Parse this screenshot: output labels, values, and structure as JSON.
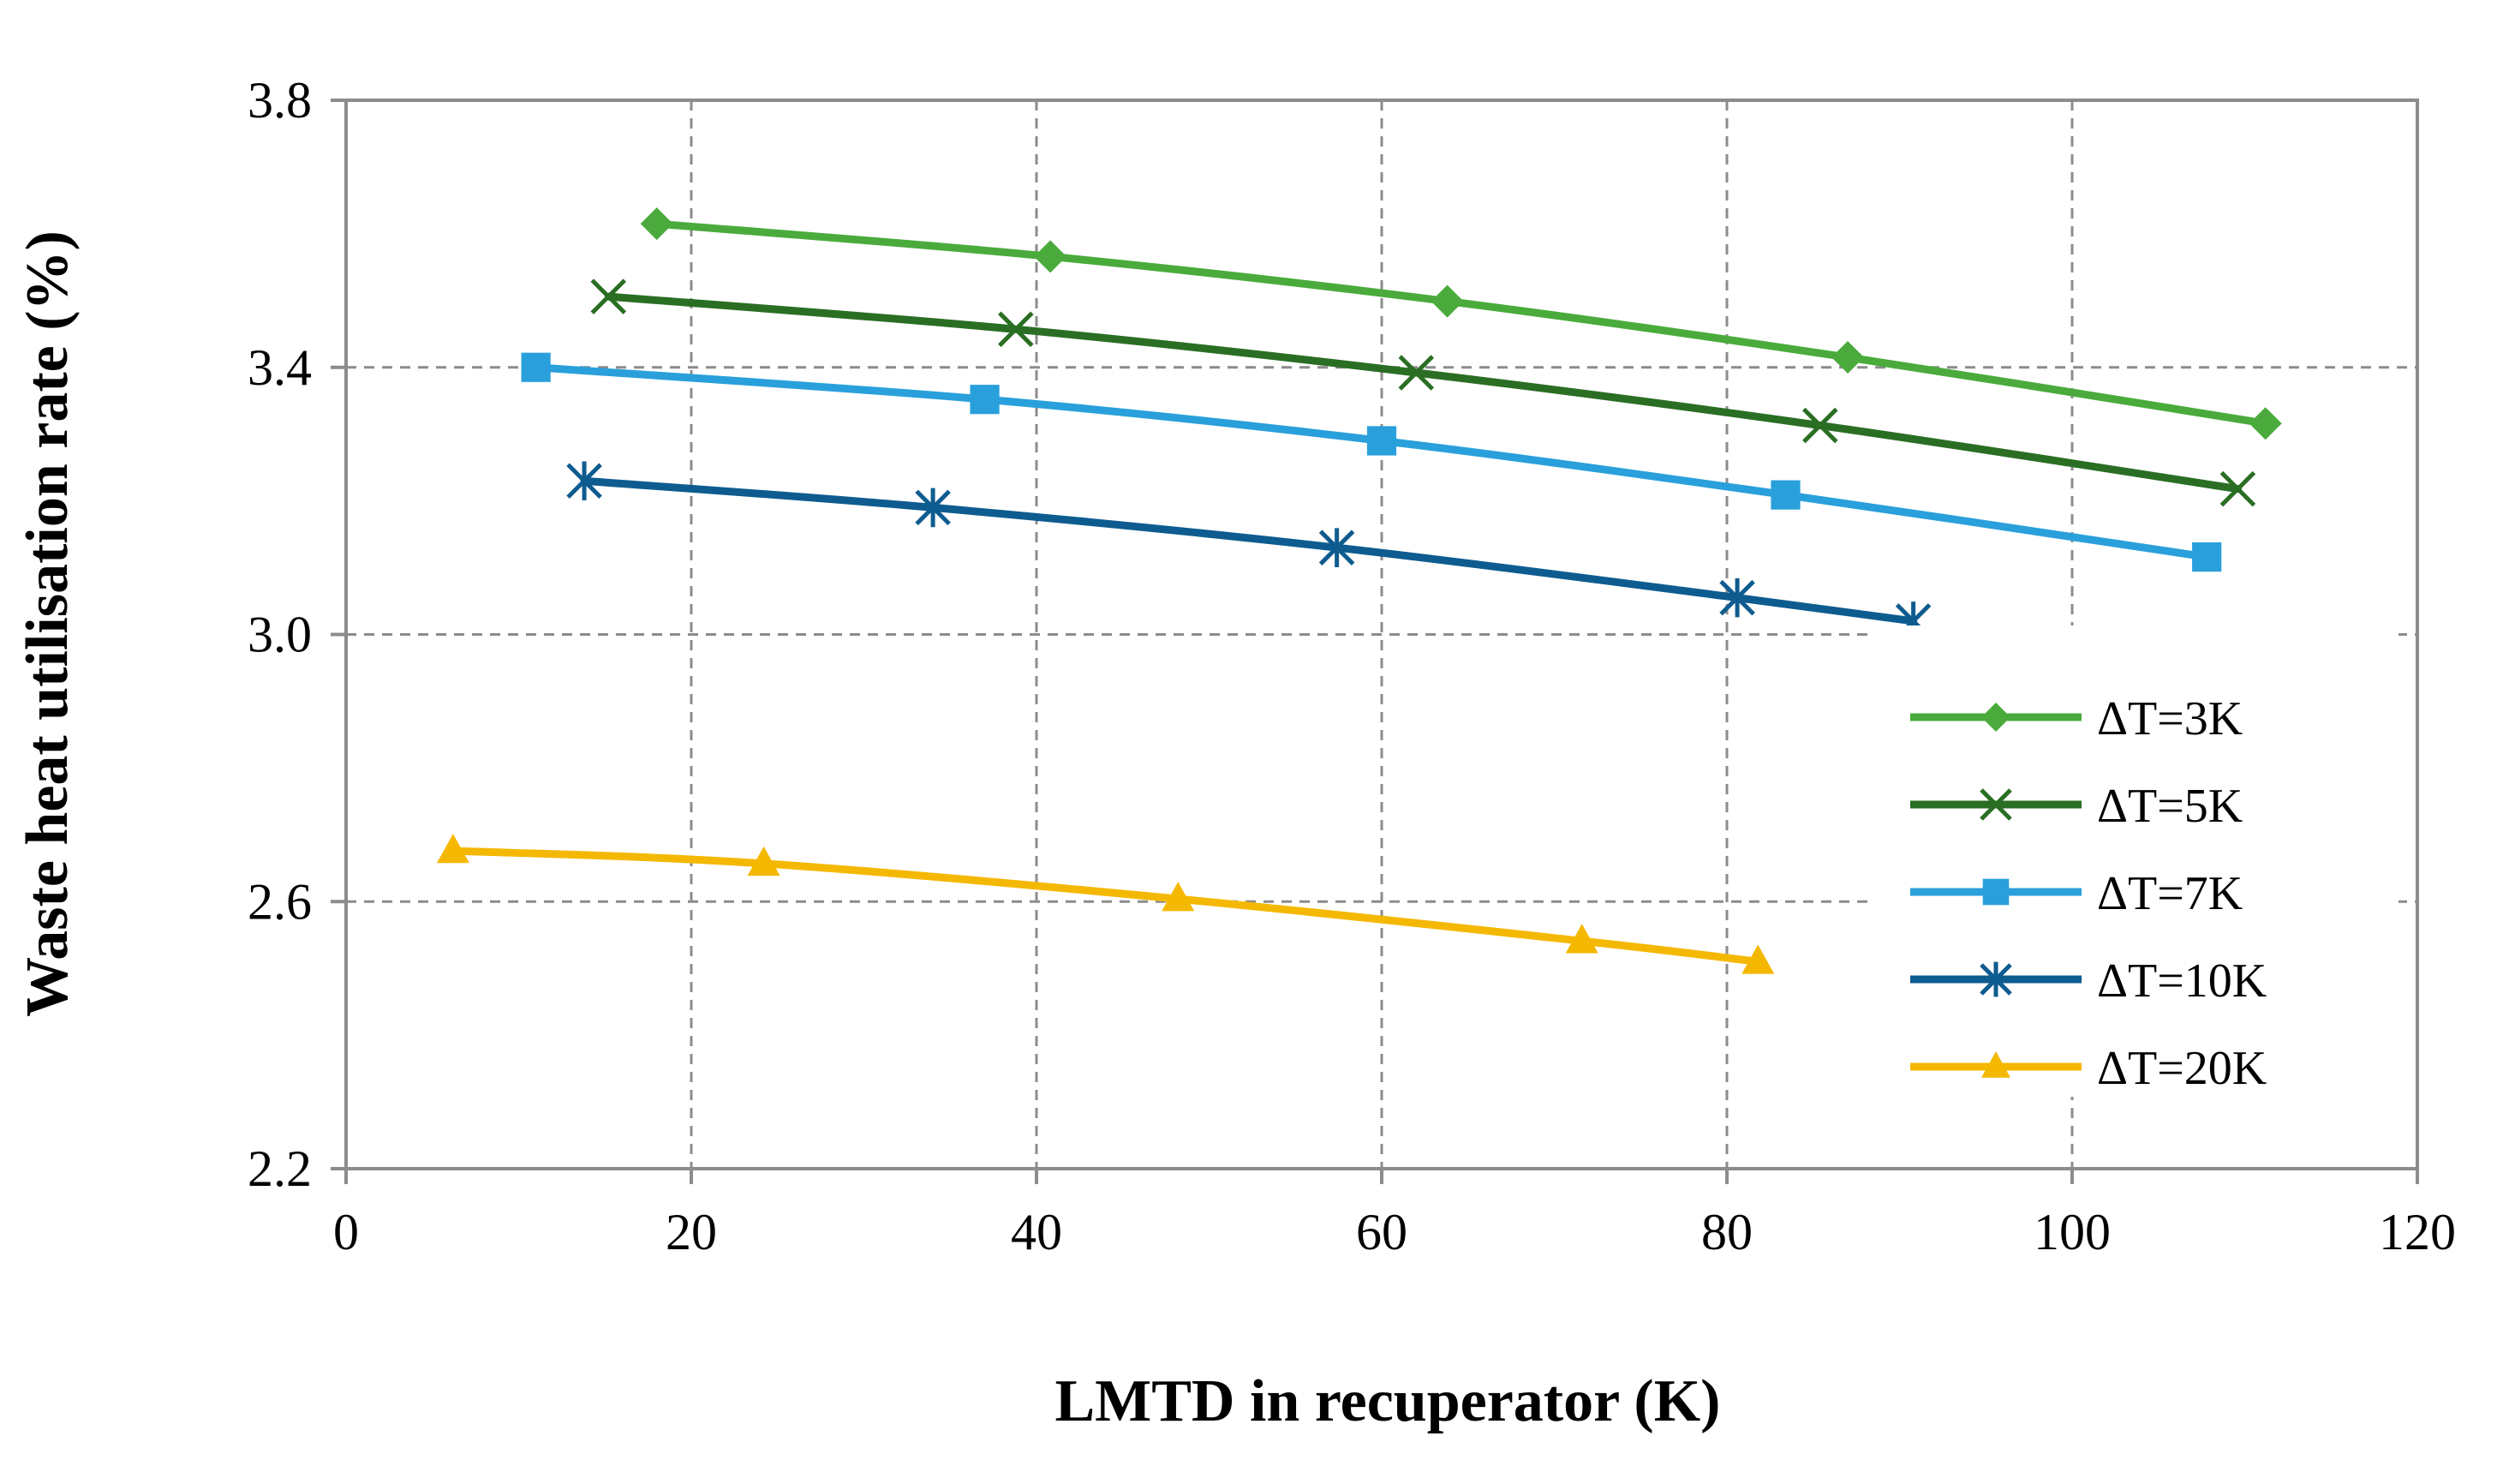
{
  "chart_data": {
    "type": "line",
    "title": "",
    "xlabel": "LMTD in recuperator (K)",
    "ylabel": "Waste heat utilisation rate (%)",
    "xlim": [
      0,
      120
    ],
    "ylim": [
      2.2,
      3.8
    ],
    "xticks": [
      0,
      20,
      40,
      60,
      80,
      100,
      120
    ],
    "yticks": [
      2.2,
      2.6,
      3.0,
      3.4,
      3.8
    ],
    "xtick_labels": [
      "0",
      "20",
      "40",
      "60",
      "80",
      "100",
      "120"
    ],
    "ytick_labels": [
      "2.2",
      "2.6",
      "3.0",
      "3.4",
      "3.8"
    ],
    "grid": true,
    "legend_position": "right",
    "series": [
      {
        "name": "ΔT=3K",
        "color": "#4aab3c",
        "marker": "diamond",
        "x": [
          18.0,
          40.8,
          63.8,
          87.0,
          111.2
        ],
        "y": [
          3.615,
          3.566,
          3.499,
          3.415,
          3.316
        ]
      },
      {
        "name": "ΔT=5K",
        "color": "#2a6e24",
        "marker": "x",
        "x": [
          15.2,
          38.8,
          62.0,
          85.4,
          109.6
        ],
        "y": [
          3.506,
          3.457,
          3.392,
          3.313,
          3.218
        ]
      },
      {
        "name": "ΔT=7K",
        "color": "#29a0db",
        "marker": "square",
        "x": [
          11.0,
          37.0,
          60.0,
          83.4,
          107.8
        ],
        "y": [
          3.4,
          3.352,
          3.29,
          3.209,
          3.116
        ]
      },
      {
        "name": "ΔT=10K",
        "color": "#0e5c8f",
        "marker": "asterisk",
        "x": [
          13.8,
          34.0,
          57.4,
          80.6,
          90.8
        ],
        "y": [
          3.23,
          3.19,
          3.13,
          3.055,
          3.02
        ]
      },
      {
        "name": "ΔT=20K",
        "color": "#f5b800",
        "marker": "triangle",
        "x": [
          6.2,
          24.2,
          48.2,
          71.6,
          81.8
        ],
        "y": [
          2.676,
          2.657,
          2.604,
          2.541,
          2.51
        ]
      }
    ]
  }
}
